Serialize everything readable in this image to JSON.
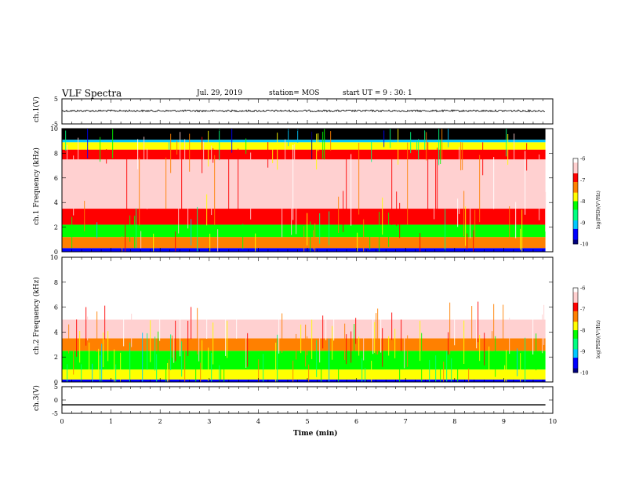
{
  "header": {
    "title": "VLF Spectra",
    "date": "Jul. 29, 2019",
    "station": "station= MOS",
    "start_ut": "start UT =  9 : 30: 1"
  },
  "chart_data": [
    {
      "type": "line",
      "panel": "ch.1(V)",
      "ylabel": "ch.1(V)",
      "ylim": [
        -5,
        5
      ],
      "yticks": [
        "5",
        "-5"
      ],
      "series": [
        {
          "x": [
            0,
            9.85
          ],
          "values": [
            0.2,
            0.2
          ]
        }
      ]
    },
    {
      "type": "heatmap",
      "panel": "ch.1 spectrogram",
      "ylabel": "ch.1 Frequency (kHz)",
      "ylim": [
        0,
        10
      ],
      "yticks": [
        "0",
        "2",
        "4",
        "6",
        "8",
        "10"
      ],
      "xlim": [
        0,
        9.85
      ],
      "bands_khz": [
        {
          "from": 0.0,
          "to": 0.3,
          "level": -9.5
        },
        {
          "from": 0.3,
          "to": 1.2,
          "level": -7.3
        },
        {
          "from": 1.2,
          "to": 2.2,
          "level": -8.2
        },
        {
          "from": 2.2,
          "to": 3.5,
          "level": -7.0
        },
        {
          "from": 3.5,
          "to": 7.5,
          "level": -6.5
        },
        {
          "from": 7.5,
          "to": 8.3,
          "level": -7.0
        },
        {
          "from": 8.3,
          "to": 8.9,
          "level": -8.0
        },
        {
          "from": 8.9,
          "to": 9.1,
          "level": -9.0
        },
        {
          "from": 9.1,
          "to": 10.0,
          "level": -10.5
        }
      ],
      "colorbar": {
        "label": "log(PSD)(V²/Hz)",
        "min": -10,
        "max": -6,
        "ticks": [
          "-6",
          "-7",
          "-8",
          "-9",
          "-10"
        ]
      }
    },
    {
      "type": "heatmap",
      "panel": "ch.2 spectrogram",
      "ylabel": "ch.2 Frequency (kHz)",
      "ylim": [
        0,
        10
      ],
      "yticks": [
        "0",
        "2",
        "4",
        "6",
        "8",
        "10"
      ],
      "xlim": [
        0,
        9.85
      ],
      "bands_khz": [
        {
          "from": 0.0,
          "to": 0.2,
          "level": -9.5
        },
        {
          "from": 0.2,
          "to": 1.0,
          "level": -8.0
        },
        {
          "from": 1.0,
          "to": 2.5,
          "level": -8.3
        },
        {
          "from": 2.5,
          "to": 3.5,
          "level": -7.2
        },
        {
          "from": 3.5,
          "to": 5.0,
          "level": -6.5
        },
        {
          "from": 5.0,
          "to": 10.0,
          "level": -6.0
        }
      ],
      "colorbar": {
        "label": "log(PSD)(V²/Hz)",
        "min": -10,
        "max": -6,
        "ticks": [
          "-6",
          "-7",
          "-8",
          "-9",
          "-10"
        ]
      }
    },
    {
      "type": "line",
      "panel": "ch.3(V)",
      "ylabel": "ch.3(V)",
      "ylim": [
        -5,
        5
      ],
      "yticks": [
        "5",
        "0",
        "-5"
      ],
      "xlabel": "Time  (min)",
      "xlim": [
        0,
        10
      ],
      "xticks": [
        "0",
        "1",
        "2",
        "3",
        "4",
        "5",
        "6",
        "7",
        "8",
        "9",
        "10"
      ],
      "series": [
        {
          "x": [
            0,
            9.85
          ],
          "values": [
            -1.8,
            -1.8
          ]
        }
      ]
    }
  ],
  "colors": {
    "colormap": [
      "#000080",
      "#0000ff",
      "#00ffff",
      "#00ff00",
      "#ffff00",
      "#ff0000",
      "#ffffff"
    ],
    "frame": "#000000"
  }
}
